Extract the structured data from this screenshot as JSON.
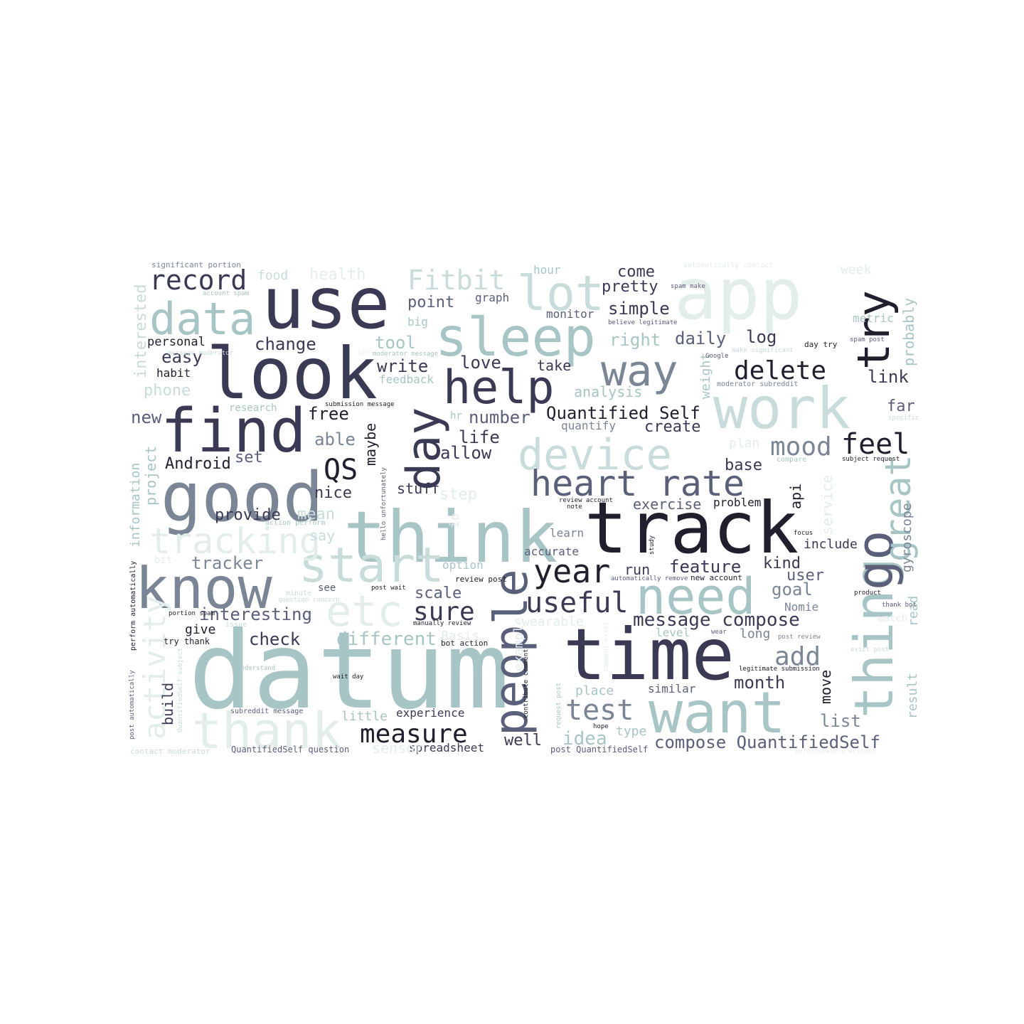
{
  "palette": {
    "dark": "#1f1f2e",
    "navy": "#3a3a55",
    "slate": "#5a5f7a",
    "gray": "#7a8696",
    "teal": "#a7c5c5",
    "light": "#c8dcdc",
    "pale": "#e3eeec"
  },
  "words": [
    {
      "text": "datum",
      "color": "teal"
    },
    {
      "text": "track",
      "color": "dark"
    },
    {
      "text": "think",
      "color": "teal"
    },
    {
      "text": "time",
      "color": "navy"
    },
    {
      "text": "app",
      "color": "pale"
    },
    {
      "text": "use",
      "color": "navy"
    },
    {
      "text": "look",
      "color": "navy"
    },
    {
      "text": "want",
      "color": "teal"
    },
    {
      "text": "work",
      "color": "light"
    },
    {
      "text": "good",
      "color": "gray"
    },
    {
      "text": "know",
      "color": "gray"
    },
    {
      "text": "find",
      "color": "navy"
    },
    {
      "text": "sleep",
      "color": "teal"
    },
    {
      "text": "thing",
      "color": "teal"
    },
    {
      "text": "thank",
      "color": "pale"
    },
    {
      "text": "need",
      "color": "teal"
    },
    {
      "text": "device",
      "color": "light"
    },
    {
      "text": "start",
      "color": "light"
    },
    {
      "text": "etc",
      "color": "pale"
    },
    {
      "text": "people",
      "color": "slate"
    },
    {
      "text": "data",
      "color": "teal"
    },
    {
      "text": "help",
      "color": "navy"
    },
    {
      "text": "lot",
      "color": "light"
    },
    {
      "text": "day",
      "color": "navy"
    },
    {
      "text": "go",
      "color": "slate"
    },
    {
      "text": "try",
      "color": "dark"
    },
    {
      "text": "way",
      "color": "gray"
    },
    {
      "text": "heart rate",
      "color": "slate"
    },
    {
      "text": "tracking",
      "color": "pale"
    },
    {
      "text": "great",
      "color": "teal"
    },
    {
      "text": "year",
      "color": "dark"
    },
    {
      "text": "test",
      "color": "gray"
    },
    {
      "text": "useful",
      "color": "navy"
    },
    {
      "text": "record",
      "color": "navy"
    },
    {
      "text": "Fitbit",
      "color": "light"
    },
    {
      "text": "measure",
      "color": "dark"
    },
    {
      "text": "activity",
      "color": "pale"
    },
    {
      "text": "delete",
      "color": "dark"
    },
    {
      "text": "sure",
      "color": "navy"
    },
    {
      "text": "mood",
      "color": "gray"
    },
    {
      "text": "feel",
      "color": "dark"
    },
    {
      "text": "QS",
      "color": "dark"
    },
    {
      "text": "add",
      "color": "gray"
    },
    {
      "text": "Quantified Self",
      "color": "dark"
    },
    {
      "text": "message compose",
      "color": "navy"
    },
    {
      "text": "compose QuantifiedSelf",
      "color": "slate"
    },
    {
      "text": "different",
      "color": "teal"
    },
    {
      "text": "interesting",
      "color": "slate"
    },
    {
      "text": "tracker",
      "color": "gray"
    },
    {
      "text": "check",
      "color": "navy"
    },
    {
      "text": "feature",
      "color": "navy"
    },
    {
      "text": "idea",
      "color": "teal"
    },
    {
      "text": "month",
      "color": "navy"
    },
    {
      "text": "change",
      "color": "navy"
    },
    {
      "text": "easy",
      "color": "navy"
    },
    {
      "text": "phone",
      "color": "light"
    },
    {
      "text": "tool",
      "color": "teal"
    },
    {
      "text": "write",
      "color": "navy"
    },
    {
      "text": "number",
      "color": "slate"
    },
    {
      "text": "life",
      "color": "navy"
    },
    {
      "text": "allow",
      "color": "navy"
    },
    {
      "text": "free",
      "color": "dark"
    },
    {
      "text": "able",
      "color": "gray"
    },
    {
      "text": "new",
      "color": "slate"
    },
    {
      "text": "set",
      "color": "slate"
    },
    {
      "text": "Android",
      "color": "dark"
    },
    {
      "text": "nice",
      "color": "navy"
    },
    {
      "text": "provide",
      "color": "navy"
    },
    {
      "text": "mean",
      "color": "light"
    },
    {
      "text": "say",
      "color": "light"
    },
    {
      "text": "pretty",
      "color": "navy"
    },
    {
      "text": "simple",
      "color": "navy"
    },
    {
      "text": "come",
      "color": "navy"
    },
    {
      "text": "daily",
      "color": "slate"
    },
    {
      "text": "right",
      "color": "teal"
    },
    {
      "text": "log",
      "color": "navy"
    },
    {
      "text": "link",
      "color": "navy"
    },
    {
      "text": "far",
      "color": "slate"
    },
    {
      "text": "base",
      "color": "navy"
    },
    {
      "text": "create",
      "color": "navy"
    },
    {
      "text": "quantify",
      "color": "gray"
    },
    {
      "text": "point",
      "color": "slate"
    },
    {
      "text": "graph",
      "color": "slate"
    },
    {
      "text": "monitor",
      "color": "slate"
    },
    {
      "text": "take",
      "color": "navy"
    },
    {
      "text": "love",
      "color": "navy"
    },
    {
      "text": "analysis",
      "color": "teal"
    },
    {
      "text": "exercise",
      "color": "slate"
    },
    {
      "text": "problem",
      "color": "dark"
    },
    {
      "text": "api",
      "color": "dark"
    },
    {
      "text": "include",
      "color": "navy"
    },
    {
      "text": "kind",
      "color": "navy"
    },
    {
      "text": "user",
      "color": "slate"
    },
    {
      "text": "goal",
      "color": "gray"
    },
    {
      "text": "Nomie",
      "color": "gray"
    },
    {
      "text": "long",
      "color": "gray"
    },
    {
      "text": "list",
      "color": "gray"
    },
    {
      "text": "move",
      "color": "dark"
    },
    {
      "text": "run",
      "color": "navy"
    },
    {
      "text": "accurate",
      "color": "slate"
    },
    {
      "text": "learn",
      "color": "gray"
    },
    {
      "text": "option",
      "color": "teal"
    },
    {
      "text": "scale",
      "color": "slate"
    },
    {
      "text": "stuff",
      "color": "navy"
    },
    {
      "text": "maybe",
      "color": "dark"
    },
    {
      "text": "spreadsheet",
      "color": "navy"
    },
    {
      "text": "well",
      "color": "navy"
    },
    {
      "text": "experience",
      "color": "navy"
    },
    {
      "text": "little",
      "color": "teal"
    },
    {
      "text": "place",
      "color": "teal"
    },
    {
      "text": "type",
      "color": "teal"
    },
    {
      "text": "similar",
      "color": "slate"
    },
    {
      "text": "level",
      "color": "teal"
    },
    {
      "text": "build",
      "color": "navy"
    },
    {
      "text": "give",
      "color": "dark"
    },
    {
      "text": "personal",
      "color": "dark"
    },
    {
      "text": "habit",
      "color": "dark"
    },
    {
      "text": "project",
      "color": "teal"
    },
    {
      "text": "information",
      "color": "teal"
    },
    {
      "text": "interested",
      "color": "light"
    },
    {
      "text": "weight",
      "color": "teal"
    },
    {
      "text": "probably",
      "color": "teal"
    },
    {
      "text": "metric",
      "color": "teal"
    },
    {
      "text": "gyroscope",
      "color": "gray"
    },
    {
      "text": "result",
      "color": "teal"
    },
    {
      "text": "read",
      "color": "teal"
    },
    {
      "text": "service",
      "color": "pale"
    },
    {
      "text": "food",
      "color": "light"
    },
    {
      "text": "health",
      "color": "pale"
    },
    {
      "text": "hour",
      "color": "teal"
    },
    {
      "text": "week",
      "color": "pale"
    },
    {
      "text": "research",
      "color": "teal"
    },
    {
      "text": "step",
      "color": "pale"
    },
    {
      "text": "feedback",
      "color": "teal"
    },
    {
      "text": "big",
      "color": "teal"
    },
    {
      "text": "hr",
      "color": "teal"
    },
    {
      "text": "plan",
      "color": "pale"
    },
    {
      "text": "wearable",
      "color": "pale"
    },
    {
      "text": "Basis",
      "color": "pale"
    },
    {
      "text": "example",
      "color": "pale"
    },
    {
      "text": "sensor",
      "color": "pale"
    },
    {
      "text": "bit",
      "color": "pale"
    },
    {
      "text": "io",
      "color": "pale"
    },
    {
      "text": "watch",
      "color": "pale"
    },
    {
      "text": "see",
      "color": "slate"
    },
    {
      "text": "significant portion",
      "color": "gray"
    },
    {
      "text": "account spam",
      "color": "teal"
    },
    {
      "text": "message moderator",
      "color": "light"
    },
    {
      "text": "let",
      "color": "pale"
    },
    {
      "text": "moderator message",
      "color": "teal"
    },
    {
      "text": "submission message",
      "color": "dark"
    },
    {
      "text": "automatically contact",
      "color": "pale"
    },
    {
      "text": "spam make",
      "color": "slate"
    },
    {
      "text": "believe legitimate",
      "color": "slate"
    },
    {
      "text": "day try",
      "color": "dark"
    },
    {
      "text": "spam post",
      "color": "slate"
    },
    {
      "text": "make significant",
      "color": "light"
    },
    {
      "text": "Google",
      "color": "slate"
    },
    {
      "text": "moderator subreddit",
      "color": "gray"
    },
    {
      "text": "specific",
      "color": "light"
    },
    {
      "text": "compare",
      "color": "teal"
    },
    {
      "text": "subject request",
      "color": "dark"
    },
    {
      "text": "review account",
      "color": "dark"
    },
    {
      "text": "note",
      "color": "dark"
    },
    {
      "text": "hello unfortunately",
      "color": "slate"
    },
    {
      "text": "action perform",
      "color": "teal"
    },
    {
      "text": "focus",
      "color": "dark"
    },
    {
      "text": "study",
      "color": "dark"
    },
    {
      "text": "automatically remove",
      "color": "slate"
    },
    {
      "text": "new account",
      "color": "dark"
    },
    {
      "text": "review post",
      "color": "dark"
    },
    {
      "text": "post wait",
      "color": "dark"
    },
    {
      "text": "product",
      "color": "dark"
    },
    {
      "text": "thank bot",
      "color": "slate"
    },
    {
      "text": "perform automatically",
      "color": "dark"
    },
    {
      "text": "minute",
      "color": "light"
    },
    {
      "text": "portion spam",
      "color": "dark"
    },
    {
      "text": "issue",
      "color": "light"
    },
    {
      "text": "question concern",
      "color": "light"
    },
    {
      "text": "manually review",
      "color": "dark"
    },
    {
      "text": "wear",
      "color": "slate"
    },
    {
      "text": "post review",
      "color": "gray"
    },
    {
      "text": "try thank",
      "color": "dark"
    },
    {
      "text": "bot action",
      "color": "dark"
    },
    {
      "text": "comment exist",
      "color": "pale"
    },
    {
      "text": "exist post",
      "color": "light"
    },
    {
      "text": "understand",
      "color": "teal"
    },
    {
      "text": "QuantifiedSelf subject",
      "color": "light"
    },
    {
      "text": "wait day",
      "color": "dark"
    },
    {
      "text": "contribute comment",
      "color": "dark"
    },
    {
      "text": "legitimate submission",
      "color": "dark"
    },
    {
      "text": "post automatically",
      "color": "slate"
    },
    {
      "text": "subreddit message",
      "color": "slate"
    },
    {
      "text": "request post",
      "color": "teal"
    },
    {
      "text": "hope",
      "color": "dark"
    },
    {
      "text": "contact moderator",
      "color": "light"
    },
    {
      "text": "QuantifiedSelf question",
      "color": "slate"
    },
    {
      "text": "post QuantifiedSelf",
      "color": "slate"
    },
    {
      "text": "unfortunately account",
      "color": "pale"
    }
  ]
}
